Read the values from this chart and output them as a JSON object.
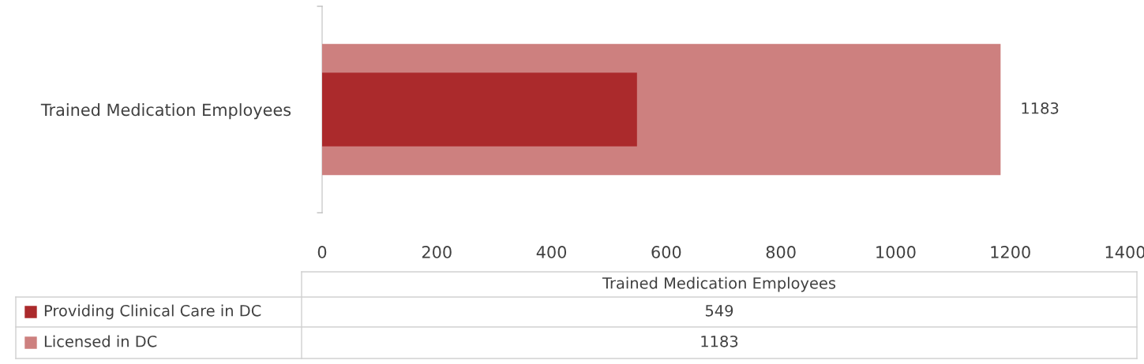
{
  "chart_data": {
    "type": "bar",
    "orientation": "horizontal",
    "categories": [
      "Trained Medication Employees"
    ],
    "series": [
      {
        "name": "Providing Clinical Care in DC",
        "color": "#ab2a2c",
        "values": [
          549
        ]
      },
      {
        "name": "Licensed in DC",
        "color": "#cd807f",
        "values": [
          1183
        ],
        "value_labels": [
          "1183"
        ]
      }
    ],
    "xlim": [
      0,
      1400
    ],
    "xticks": [
      0,
      200,
      400,
      600,
      800,
      1000,
      1200,
      1400
    ],
    "grid": false,
    "legend": "bottom",
    "annotations": [
      "549",
      "1183"
    ]
  }
}
